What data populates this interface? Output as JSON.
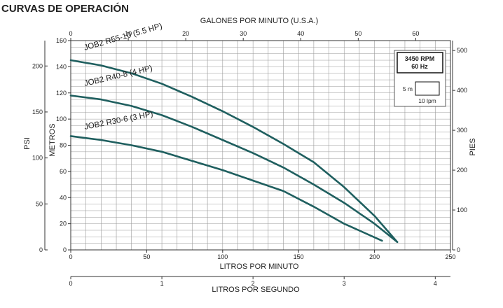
{
  "page_title": "CURVAS DE OPERACIÓN",
  "chart_data": {
    "type": "line",
    "x_axes": {
      "bottom_primary": {
        "label": "LITROS POR MINUTO",
        "range": [
          0,
          250
        ],
        "ticks": [
          "0",
          "50",
          "100",
          "150",
          "200",
          "250"
        ]
      },
      "top": {
        "label": "GALONES POR MINUTO (U.S.A.)",
        "range": [
          0,
          66.04
        ],
        "ticks": [
          "0",
          "10",
          "20",
          "30",
          "40",
          "50",
          "60"
        ]
      },
      "bottom_secondary": {
        "label": "LITROS POR SEGUNDO",
        "range": [
          0,
          4.1667
        ],
        "ticks": [
          "0",
          "1",
          "2",
          "3",
          "4"
        ]
      }
    },
    "y_axes": {
      "metros": {
        "label": "METROS",
        "range": [
          0,
          160
        ],
        "ticks": [
          "0",
          "20",
          "40",
          "60",
          "80",
          "100",
          "120",
          "140",
          "160"
        ]
      },
      "psi": {
        "label": "PSI",
        "range": [
          0,
          227.6
        ],
        "ticks": [
          "0",
          "50",
          "100",
          "150",
          "200"
        ]
      },
      "pies": {
        "label": "PIES",
        "range": [
          0,
          524.9
        ],
        "ticks": [
          "0",
          "100",
          "200",
          "300",
          "400",
          "500"
        ]
      }
    },
    "grid": true,
    "series": [
      {
        "name": "JOB2 R55-10 (5.5 HP)",
        "x": [
          0,
          20,
          40,
          60,
          80,
          100,
          120,
          140,
          160,
          180,
          200,
          215
        ],
        "y": [
          145,
          141,
          135,
          127,
          117,
          106,
          94,
          81,
          67,
          48,
          26,
          6
        ]
      },
      {
        "name": "JOB2 R40-8 (4 HP)",
        "x": [
          0,
          20,
          40,
          60,
          80,
          100,
          120,
          140,
          160,
          180,
          200,
          215
        ],
        "y": [
          118,
          115,
          110,
          103,
          94,
          84,
          74,
          63,
          50,
          36,
          20,
          6
        ]
      },
      {
        "name": "JOB2 R30-6 (3 HP)",
        "x": [
          0,
          20,
          40,
          60,
          80,
          100,
          120,
          140,
          160,
          180,
          205
        ],
        "y": [
          87,
          84,
          80,
          75,
          68,
          61,
          53,
          45,
          33,
          20,
          7
        ]
      }
    ],
    "legend_box": {
      "rpm": "3450 RPM",
      "hz": "60 Hz",
      "height_label": "5 m",
      "flow_label": "10 lpm"
    },
    "colors": {
      "curve": "#1f5f5f",
      "grid": "#9a9a9a"
    }
  }
}
